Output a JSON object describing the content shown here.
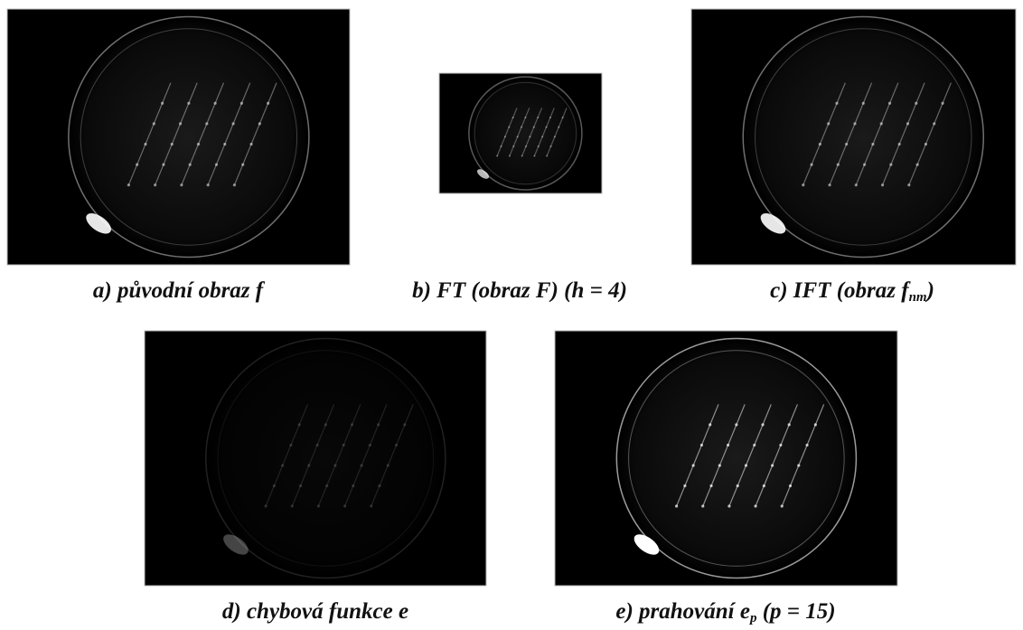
{
  "panels": [
    {
      "caption": {
        "main": "a) původní obraz  f"
      }
    },
    {
      "caption": {
        "main": "b) FT (obraz F) (h = 4)"
      }
    },
    {
      "caption": {
        "main": "c) IFT (obraz  f",
        "sub": "nm",
        "tail": ")"
      }
    },
    {
      "caption": {
        "main": "d) chybová funkce e"
      }
    },
    {
      "caption": {
        "main": "e) prahování e",
        "sub": "p",
        "tail": " (p = 15)"
      }
    }
  ]
}
